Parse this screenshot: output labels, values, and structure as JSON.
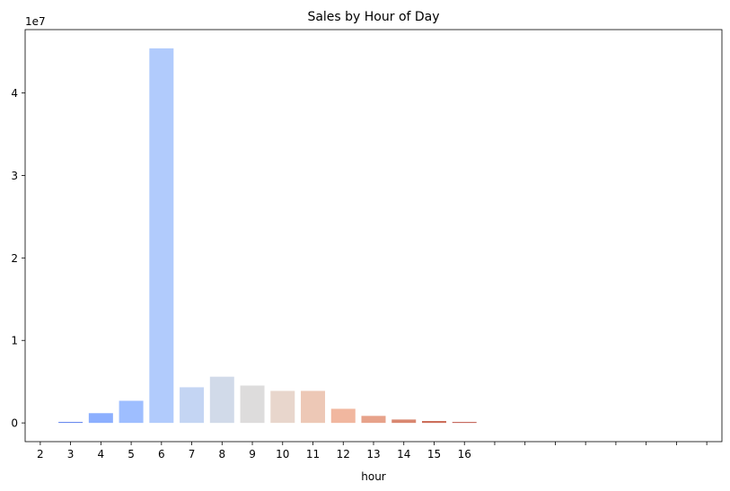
{
  "chart_data": {
    "type": "bar",
    "title": "Sales by Hour of Day",
    "xlabel": "hour",
    "ylabel": "",
    "y_multiplier_label": "1e7",
    "categories": [
      "2",
      "3",
      "4",
      "5",
      "6",
      "7",
      "8",
      "9",
      "10",
      "11",
      "12",
      "13",
      "14",
      "15",
      "16"
    ],
    "values": [
      0,
      120000,
      1180000,
      2680000,
      45400000,
      4320000,
      5600000,
      4530000,
      3880000,
      3880000,
      1710000,
      850000,
      410000,
      230000,
      80000
    ],
    "bar_colors": [
      "#5a78e4",
      "#6788ee",
      "#8caffe",
      "#9ebeff",
      "#b1cbfc",
      "#c4d5f3",
      "#d1dae9",
      "#dddcdc",
      "#e8d6cc",
      "#edc8b6",
      "#f1b79f",
      "#e7a28a",
      "#d98770",
      "#cc6d5a",
      "#bd5447"
    ],
    "ylim": [
      -2270000,
      47670000
    ],
    "yticks": [
      0,
      10000000,
      20000000,
      30000000,
      40000000
    ],
    "ytick_labels": [
      "0",
      "1",
      "2",
      "3",
      "4"
    ],
    "x_slot_count": 23,
    "grid": false,
    "legend": "none"
  }
}
